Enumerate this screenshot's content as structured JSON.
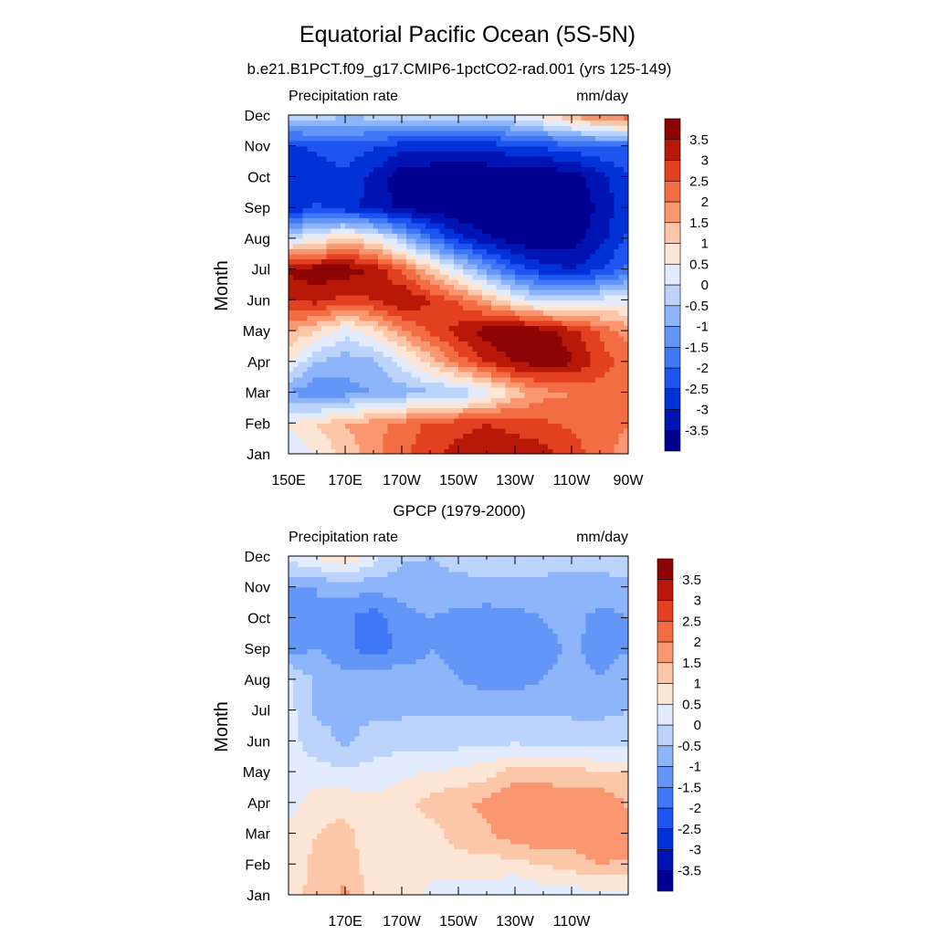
{
  "figure": {
    "main_title": "Equatorial Pacific Ocean (5S-5N)"
  },
  "colorbar": {
    "levels": [
      -3.5,
      -3,
      -2.5,
      -2,
      -1.5,
      -1,
      -0.5,
      0,
      0.5,
      1,
      1.5,
      2,
      2.5,
      3,
      3.5
    ],
    "labels": [
      "-3.5",
      "-3",
      "-2.5",
      "-2",
      "-1.5",
      "-1",
      "-0.5",
      "0",
      "0.5",
      "1",
      "1.5",
      "2",
      "2.5",
      "3",
      "3.5"
    ],
    "colors": [
      "#000090",
      "#0014b4",
      "#0032d8",
      "#1e54f0",
      "#3e78f6",
      "#6496f8",
      "#8eb4fa",
      "#bcd4fc",
      "#e2ecfe",
      "#fee6d6",
      "#fcc6a8",
      "#fa9670",
      "#f26c44",
      "#e24020",
      "#b81808",
      "#8c0404"
    ]
  },
  "chart_data": [
    {
      "type": "heatmap",
      "title": "b.e21.B1PCT.f09_g17.CMIP6-1pctCO2-rad.001 (yrs 125-149)",
      "left_string": "Precipitation rate",
      "right_string": "mm/day",
      "ylabel": "Month",
      "xlim": [
        150,
        270
      ],
      "x_ticks": [
        150,
        170,
        190,
        210,
        230,
        250,
        270
      ],
      "x_tick_labels": [
        "150E",
        "170E",
        "170W",
        "150W",
        "130W",
        "110W",
        "90W"
      ],
      "months": [
        "Jan",
        "Feb",
        "Mar",
        "Apr",
        "May",
        "Jun",
        "Jul",
        "Aug",
        "Sep",
        "Oct",
        "Nov",
        "Dec"
      ],
      "lon": [
        150,
        160,
        170,
        180,
        190,
        200,
        210,
        220,
        230,
        240,
        250,
        260,
        270
      ],
      "values": [
        [
          0.2,
          0.5,
          1.2,
          1.8,
          2.4,
          2.8,
          3.2,
          3.4,
          3.4,
          3.2,
          2.8,
          2.2,
          1.8
        ],
        [
          0.5,
          1.0,
          1.5,
          1.8,
          2.2,
          2.6,
          2.8,
          3.0,
          2.8,
          2.6,
          2.4,
          2.2,
          2.0
        ],
        [
          -1.0,
          -1.5,
          -1.2,
          -1.0,
          -0.8,
          -0.6,
          -0.5,
          0.2,
          1.2,
          1.8,
          2.0,
          2.2,
          2.4
        ],
        [
          0.5,
          -0.5,
          -0.8,
          -0.6,
          0.2,
          1.2,
          2.2,
          3.0,
          3.6,
          3.8,
          3.6,
          2.8,
          2.2
        ],
        [
          1.5,
          1.0,
          0.2,
          0.8,
          1.8,
          2.6,
          3.2,
          3.8,
          4.0,
          3.8,
          3.2,
          2.4,
          1.8
        ],
        [
          3.0,
          3.2,
          2.8,
          3.0,
          3.6,
          3.0,
          2.4,
          1.5,
          0.5,
          -0.2,
          -0.2,
          0.2,
          0.3
        ],
        [
          3.6,
          3.8,
          3.8,
          3.4,
          2.4,
          1.2,
          0.0,
          -1.2,
          -2.2,
          -2.8,
          -3.0,
          -2.6,
          -1.8
        ],
        [
          0.0,
          0.5,
          1.2,
          0.6,
          -0.5,
          -1.8,
          -2.8,
          -3.4,
          -3.8,
          -4.0,
          -3.8,
          -3.2,
          -2.4
        ],
        [
          -3.0,
          -2.4,
          -2.8,
          -3.2,
          -3.6,
          -3.8,
          -4.0,
          -4.0,
          -4.0,
          -4.0,
          -4.0,
          -3.4,
          -2.6
        ],
        [
          -2.6,
          -2.8,
          -2.6,
          -3.2,
          -3.8,
          -4.0,
          -4.0,
          -4.0,
          -4.0,
          -4.0,
          -3.8,
          -3.2,
          -2.6
        ],
        [
          -2.6,
          -2.4,
          -2.2,
          -2.4,
          -2.8,
          -2.8,
          -2.8,
          -2.8,
          -2.6,
          -2.4,
          -2.2,
          -2.0,
          -2.0
        ],
        [
          0.0,
          -0.2,
          -0.4,
          -0.3,
          -0.2,
          -0.2,
          -0.1,
          -0.1,
          0.2,
          0.8,
          1.6,
          2.2,
          2.4
        ]
      ]
    },
    {
      "type": "heatmap",
      "title": "GPCP (1979-2000)",
      "left_string": "Precipitation rate",
      "right_string": "mm/day",
      "ylabel": "Month",
      "xlim": [
        150,
        270
      ],
      "x_ticks": [
        170,
        190,
        210,
        230,
        250
      ],
      "x_tick_labels": [
        "170E",
        "170W",
        "150W",
        "130W",
        "110W"
      ],
      "months": [
        "Jan",
        "Feb",
        "Mar",
        "Apr",
        "May",
        "Jun",
        "Jul",
        "Aug",
        "Sep",
        "Oct",
        "Nov",
        "Dec"
      ],
      "lon": [
        150,
        160,
        170,
        180,
        190,
        200,
        210,
        220,
        230,
        240,
        250,
        260,
        270
      ],
      "values": [
        [
          0.8,
          1.2,
          1.6,
          0.8,
          0.8,
          0.4,
          0.2,
          0.2,
          0.0,
          0.2,
          0.2,
          0.3,
          0.3
        ],
        [
          0.6,
          1.2,
          1.4,
          0.6,
          0.8,
          0.6,
          0.8,
          0.8,
          0.8,
          1.0,
          1.2,
          1.5,
          1.4
        ],
        [
          0.6,
          1.0,
          1.2,
          0.6,
          0.8,
          0.8,
          1.2,
          1.4,
          1.8,
          2.0,
          1.8,
          2.0,
          1.8
        ],
        [
          0.3,
          0.8,
          0.8,
          0.6,
          0.8,
          1.2,
          1.4,
          1.6,
          2.0,
          2.0,
          1.8,
          2.0,
          1.4
        ],
        [
          0.2,
          0.2,
          0.1,
          0.2,
          0.4,
          0.5,
          0.6,
          0.8,
          1.2,
          1.2,
          1.2,
          1.0,
          1.0
        ],
        [
          0.2,
          -0.3,
          -0.6,
          -0.3,
          -0.2,
          -0.2,
          -0.2,
          -0.1,
          -0.1,
          -0.2,
          -0.2,
          -0.3,
          -0.2
        ],
        [
          0.2,
          -0.6,
          -0.6,
          -0.6,
          -0.6,
          -0.6,
          -0.6,
          -0.6,
          -0.6,
          -0.6,
          -0.6,
          -0.6,
          -0.5
        ],
        [
          0.1,
          -0.6,
          -0.8,
          -0.6,
          -0.6,
          -0.8,
          -1.0,
          -1.2,
          -1.2,
          -1.0,
          -0.8,
          -1.0,
          -0.8
        ],
        [
          -1.2,
          -1.0,
          -1.4,
          -1.8,
          -1.4,
          -1.0,
          -1.2,
          -1.4,
          -1.4,
          -1.2,
          -0.9,
          -1.2,
          -1.0
        ],
        [
          -1.2,
          -1.0,
          -1.4,
          -1.8,
          -1.2,
          -1.0,
          -1.2,
          -1.3,
          -1.2,
          -1.0,
          -0.8,
          -1.2,
          -1.0
        ],
        [
          -1.0,
          -1.0,
          -0.8,
          -0.8,
          -0.8,
          -0.6,
          -0.6,
          -0.6,
          -0.6,
          -0.7,
          -0.7,
          -0.7,
          -0.6
        ],
        [
          0.2,
          0.6,
          1.0,
          0.2,
          -0.4,
          -0.5,
          -0.4,
          -0.3,
          -0.2,
          -0.2,
          -0.3,
          -0.3,
          -0.2
        ]
      ]
    }
  ]
}
